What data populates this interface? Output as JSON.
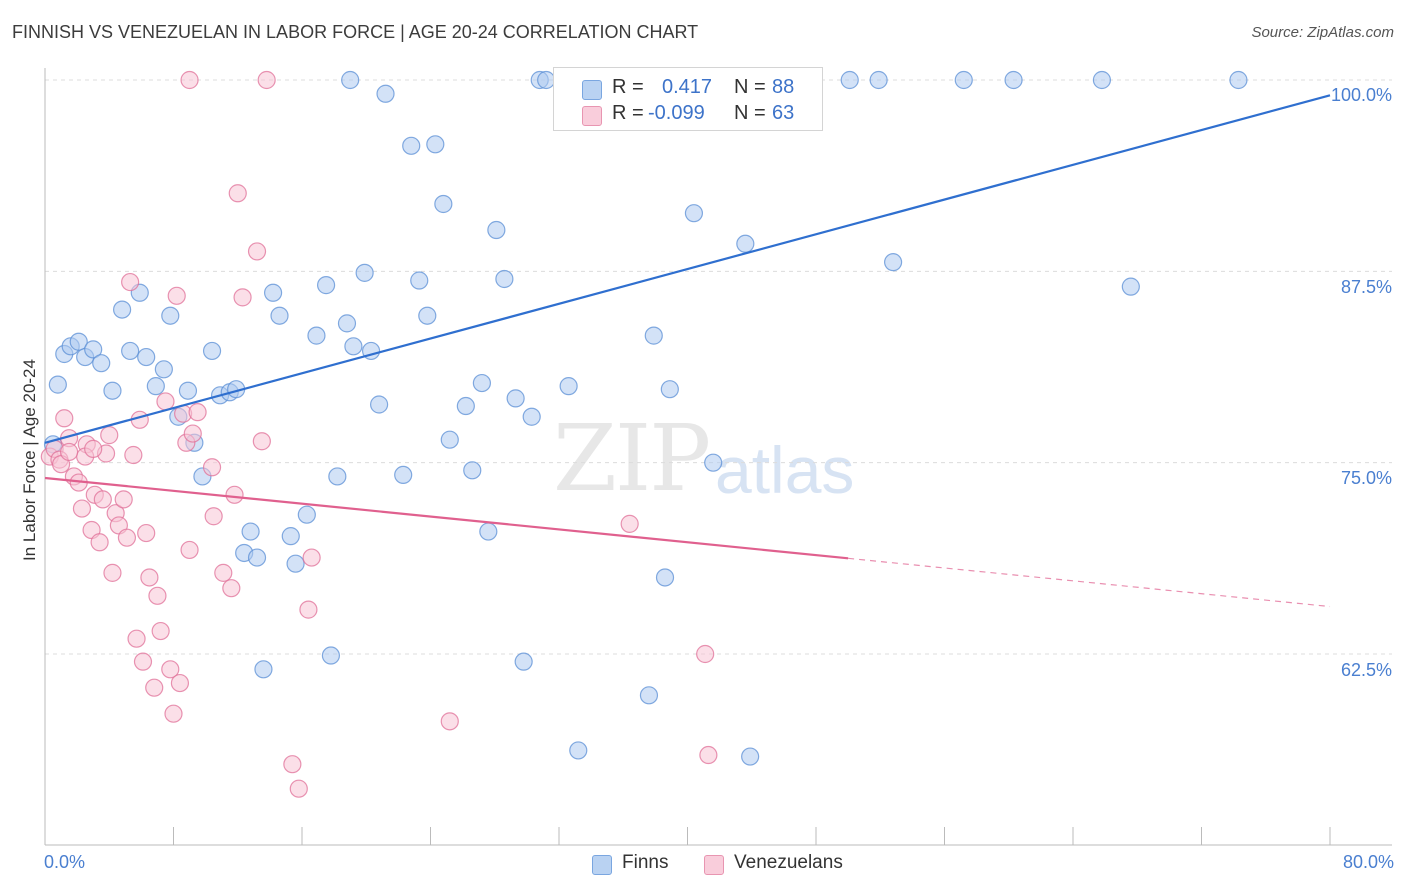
{
  "title": "FINNISH VS VENEZUELAN IN LABOR FORCE | AGE 20-24 CORRELATION CHART",
  "source": "Source: ZipAtlas.com",
  "watermark": {
    "zip": "ZIP",
    "atlas": "atlas"
  },
  "legend": {
    "r_label": "R =",
    "n_label": "N =",
    "finns": {
      "r": "0.417",
      "n": "88"
    },
    "venezuelans": {
      "r": "-0.099",
      "n": "63"
    }
  },
  "colors": {
    "finns": "#5b8fd6",
    "finns_fill": "#aecbf0",
    "venezuelans": "#e07098",
    "venezuelans_fill": "#f7c4d5",
    "accent_text": "#4a7fd0"
  },
  "chart_data": {
    "type": "scatter",
    "title": "FINNISH VS VENEZUELAN IN LABOR FORCE | AGE 20-24 CORRELATION CHART",
    "xlabel": "",
    "ylabel": "In Labor Force | Age 20-24",
    "xlim": [
      0,
      80
    ],
    "ylim": [
      52.5,
      100.5
    ],
    "x_tick_labels": [
      "0.0%",
      "80.0%"
    ],
    "y_ticks": [
      62.5,
      75.0,
      87.5,
      100.0
    ],
    "y_tick_labels": [
      "62.5%",
      "75.0%",
      "87.5%",
      "100.0%"
    ],
    "grid": true,
    "legend_position": "top-center",
    "series": [
      {
        "name": "Finns",
        "r": 0.417,
        "n": 88,
        "trend": {
          "x": [
            0,
            80
          ],
          "y": [
            76.3,
            99.0
          ],
          "dashed_from": null
        },
        "points": [
          [
            0.5,
            76.2
          ],
          [
            0.8,
            80.1
          ],
          [
            1.2,
            82.1
          ],
          [
            1.6,
            82.6
          ],
          [
            2.1,
            82.9
          ],
          [
            2.5,
            81.9
          ],
          [
            3.0,
            82.4
          ],
          [
            3.5,
            81.5
          ],
          [
            4.2,
            79.7
          ],
          [
            4.8,
            85.0
          ],
          [
            5.3,
            82.3
          ],
          [
            5.9,
            86.1
          ],
          [
            6.3,
            81.9
          ],
          [
            6.9,
            80.0
          ],
          [
            7.4,
            81.1
          ],
          [
            7.8,
            84.6
          ],
          [
            8.3,
            78.0
          ],
          [
            8.9,
            79.7
          ],
          [
            9.3,
            76.3
          ],
          [
            9.8,
            74.1
          ],
          [
            10.4,
            82.3
          ],
          [
            10.9,
            79.4
          ],
          [
            11.5,
            79.6
          ],
          [
            11.9,
            79.8
          ],
          [
            12.4,
            69.1
          ],
          [
            12.8,
            70.5
          ],
          [
            13.2,
            68.8
          ],
          [
            13.6,
            61.5
          ],
          [
            14.2,
            86.1
          ],
          [
            14.6,
            84.6
          ],
          [
            15.3,
            70.2
          ],
          [
            15.6,
            68.4
          ],
          [
            16.3,
            71.6
          ],
          [
            16.9,
            83.3
          ],
          [
            17.5,
            86.6
          ],
          [
            17.8,
            62.4
          ],
          [
            18.2,
            74.1
          ],
          [
            18.8,
            84.1
          ],
          [
            19.2,
            82.6
          ],
          [
            19.9,
            87.4
          ],
          [
            20.3,
            82.3
          ],
          [
            20.8,
            78.8
          ],
          [
            21.2,
            99.1
          ],
          [
            22.3,
            74.2
          ],
          [
            22.8,
            95.7
          ],
          [
            23.3,
            86.9
          ],
          [
            23.8,
            84.6
          ],
          [
            24.3,
            95.8
          ],
          [
            24.8,
            91.9
          ],
          [
            25.2,
            76.5
          ],
          [
            26.2,
            78.7
          ],
          [
            26.6,
            74.5
          ],
          [
            27.2,
            80.2
          ],
          [
            27.6,
            70.5
          ],
          [
            28.1,
            90.2
          ],
          [
            28.6,
            87.0
          ],
          [
            29.3,
            79.2
          ],
          [
            29.8,
            62.0
          ],
          [
            30.3,
            78.0
          ],
          [
            30.8,
            100.0
          ],
          [
            31.2,
            100.0
          ],
          [
            32.6,
            80.0
          ],
          [
            33.2,
            56.2
          ],
          [
            34.3,
            100.0
          ],
          [
            35.1,
            100.0
          ],
          [
            36.3,
            100.0
          ],
          [
            37.6,
            59.8
          ],
          [
            37.9,
            83.3
          ],
          [
            38.6,
            67.5
          ],
          [
            38.9,
            79.8
          ],
          [
            39.8,
            100.0
          ],
          [
            40.4,
            91.3
          ],
          [
            41.2,
            100.0
          ],
          [
            41.6,
            75.0
          ],
          [
            42.6,
            100.0
          ],
          [
            43.6,
            89.3
          ],
          [
            43.9,
            55.8
          ],
          [
            44.3,
            100.0
          ],
          [
            45.3,
            100.0
          ],
          [
            50.1,
            100.0
          ],
          [
            51.9,
            100.0
          ],
          [
            52.8,
            88.1
          ],
          [
            57.2,
            100.0
          ],
          [
            60.3,
            100.0
          ],
          [
            65.8,
            100.0
          ],
          [
            67.6,
            86.5
          ],
          [
            74.3,
            100.0
          ],
          [
            19.0,
            100.0
          ]
        ]
      },
      {
        "name": "Venezuelans",
        "r": -0.099,
        "n": 63,
        "trend": {
          "x": [
            0,
            80
          ],
          "y": [
            74.0,
            65.6
          ],
          "dashed_from": 50
        },
        "points": [
          [
            0.3,
            75.4
          ],
          [
            0.6,
            75.9
          ],
          [
            0.9,
            75.2
          ],
          [
            1.2,
            77.9
          ],
          [
            1.5,
            76.6
          ],
          [
            1.8,
            74.1
          ],
          [
            2.1,
            73.7
          ],
          [
            2.3,
            72.0
          ],
          [
            2.6,
            76.2
          ],
          [
            2.9,
            70.6
          ],
          [
            3.1,
            72.9
          ],
          [
            3.4,
            69.8
          ],
          [
            3.6,
            72.6
          ],
          [
            3.8,
            75.6
          ],
          [
            4.0,
            76.8
          ],
          [
            4.2,
            67.8
          ],
          [
            4.4,
            71.7
          ],
          [
            4.6,
            70.9
          ],
          [
            4.9,
            72.6
          ],
          [
            5.1,
            70.1
          ],
          [
            5.3,
            86.8
          ],
          [
            5.5,
            75.5
          ],
          [
            5.7,
            63.5
          ],
          [
            5.9,
            77.8
          ],
          [
            6.1,
            62.0
          ],
          [
            6.3,
            70.4
          ],
          [
            6.5,
            67.5
          ],
          [
            6.8,
            60.3
          ],
          [
            7.0,
            66.3
          ],
          [
            7.2,
            64.0
          ],
          [
            7.5,
            79.0
          ],
          [
            7.8,
            61.5
          ],
          [
            8.0,
            58.6
          ],
          [
            8.2,
            85.9
          ],
          [
            8.4,
            60.6
          ],
          [
            8.6,
            78.2
          ],
          [
            8.8,
            76.3
          ],
          [
            9.0,
            69.3
          ],
          [
            9.2,
            76.9
          ],
          [
            9.5,
            78.3
          ],
          [
            9.0,
            100.0
          ],
          [
            10.4,
            74.7
          ],
          [
            10.5,
            71.5
          ],
          [
            11.1,
            67.8
          ],
          [
            11.6,
            66.8
          ],
          [
            11.8,
            72.9
          ],
          [
            12.0,
            92.6
          ],
          [
            12.3,
            85.8
          ],
          [
            13.2,
            88.8
          ],
          [
            13.5,
            76.4
          ],
          [
            13.8,
            100.0
          ],
          [
            15.4,
            55.3
          ],
          [
            15.8,
            53.7
          ],
          [
            16.4,
            65.4
          ],
          [
            16.6,
            68.8
          ],
          [
            25.2,
            58.1
          ],
          [
            36.4,
            71.0
          ],
          [
            41.1,
            62.5
          ],
          [
            41.3,
            55.9
          ],
          [
            1.0,
            74.9
          ],
          [
            2.5,
            75.4
          ],
          [
            3.0,
            75.9
          ],
          [
            1.5,
            75.7
          ]
        ]
      }
    ]
  }
}
